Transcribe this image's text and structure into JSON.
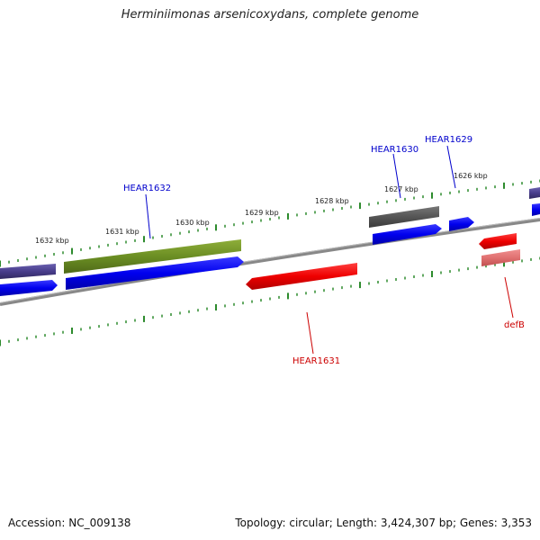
{
  "title": "Herminiimonas arsenicoxydans, complete genome",
  "footer": {
    "accession": "Accession: NC_009138",
    "summary": "Topology: circular; Length: 3,424,307 bp; Genes: 3,353"
  },
  "ruler": {
    "unit": "kbp",
    "ticks": [
      "1632 kbp",
      "1631 kbp",
      "1630 kbp",
      "1629 kbp",
      "1628 kbp",
      "1627 kbp",
      "1626 kbp"
    ]
  },
  "genes": [
    {
      "name": "HEAR1632",
      "strand": "forward",
      "color": "#0000cc"
    },
    {
      "name": "HEAR1630",
      "strand": "forward",
      "color": "#0000cc"
    },
    {
      "name": "HEAR1629",
      "strand": "forward",
      "color": "#0000cc"
    },
    {
      "name": "HEAR1631",
      "strand": "reverse",
      "color": "#cc0000"
    },
    {
      "name": "defB",
      "strand": "reverse",
      "color": "#cc0000"
    }
  ],
  "colors": {
    "forward_cds": "#0000ff",
    "reverse_cds": "#ff0000",
    "backbone": "#808080",
    "tick": "#2e8b2e",
    "cog_green": "#6b8e23",
    "cog_purple": "#483d8b",
    "cog_gray": "#555555",
    "cog_pink": "#e07070"
  }
}
